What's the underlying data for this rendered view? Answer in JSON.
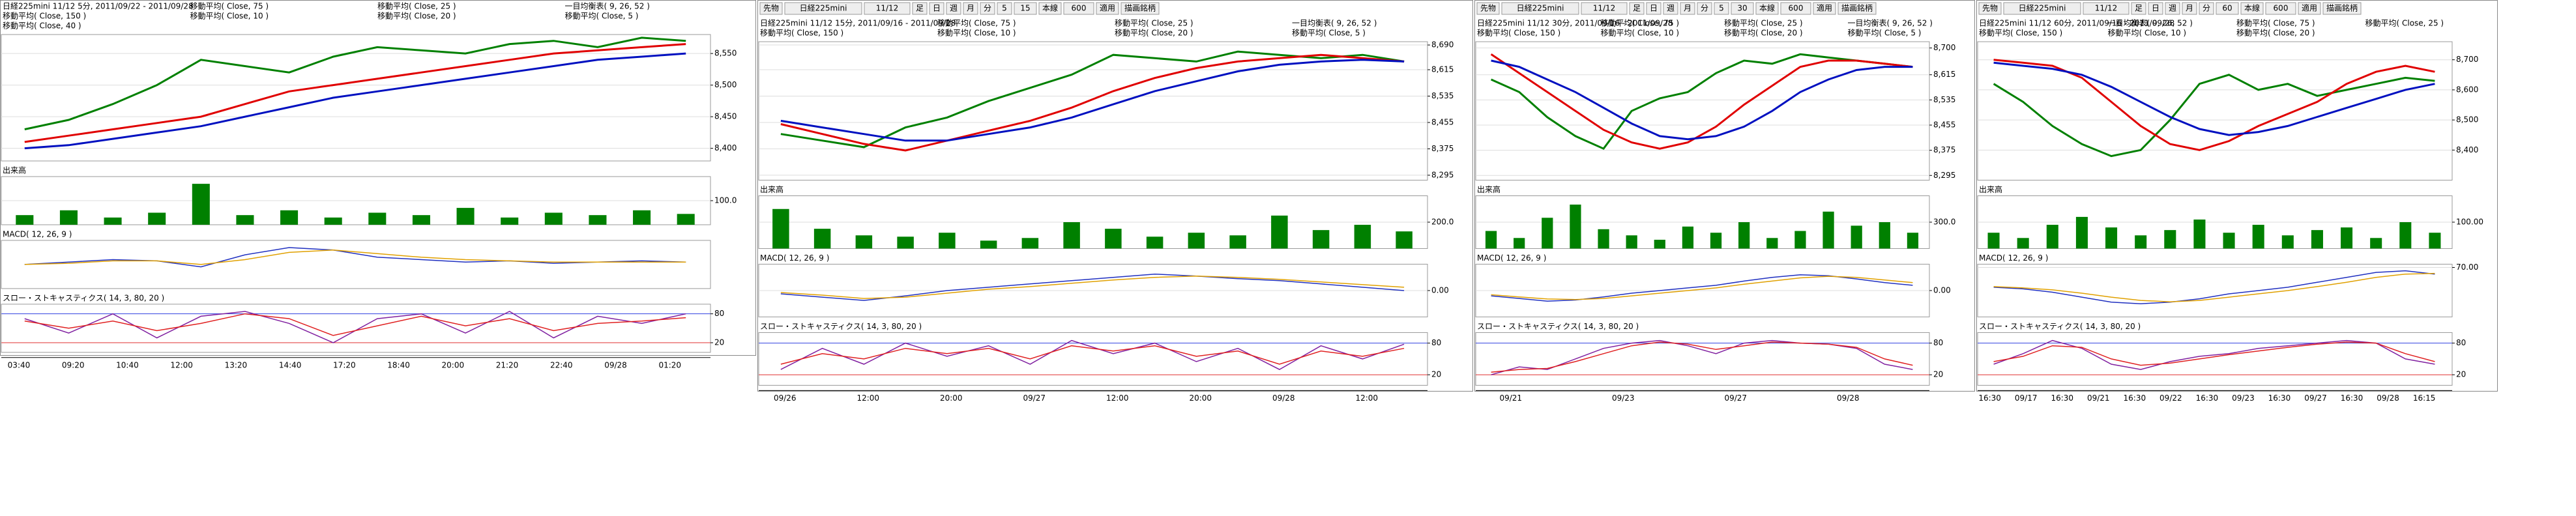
{
  "panels": [
    {
      "toolbar": null,
      "header": [
        "日経225mini 11/12 5分, 2011/09/22 - 2011/09/28",
        "移動平均( Close, 75 )",
        "移動平均( Close, 25 )",
        "一目均衡表( 9, 26, 52 )",
        "移動平均( Close, 150 )",
        "移動平均( Close, 10 )",
        "移動平均( Close, 20 )",
        "移動平均( Close, 5 )",
        "移動平均( Close, 40 )"
      ],
      "price": {
        "ylim": [
          8380,
          8580
        ],
        "yticks": [
          {
            "value": 8400,
            "label": "8,400"
          },
          {
            "value": 8450,
            "label": "8,450"
          },
          {
            "value": 8500,
            "label": "8,500"
          },
          {
            "value": 8550,
            "label": "8,550"
          }
        ],
        "series": [
          {
            "color": "#008000",
            "values": [
              8430,
              8445,
              8470,
              8500,
              8540,
              8530,
              8520,
              8545,
              8560,
              8555,
              8550,
              8565,
              8570,
              8560,
              8575,
              8570
            ]
          },
          {
            "color": "#e00000",
            "values": [
              8410,
              8420,
              8430,
              8440,
              8450,
              8470,
              8490,
              8500,
              8510,
              8520,
              8530,
              8540,
              8550,
              8555,
              8560,
              8565
            ]
          },
          {
            "color": "#0010c0",
            "values": [
              8400,
              8405,
              8415,
              8425,
              8435,
              8450,
              8465,
              8480,
              8490,
              8500,
              8510,
              8520,
              8530,
              8540,
              8545,
              8550
            ]
          }
        ]
      },
      "volume": {
        "label": "出来高",
        "ylim": [
          0,
          200
        ],
        "yticks": [
          {
            "value": 100,
            "label": "100.0"
          }
        ],
        "color": "#008000",
        "values": [
          40,
          60,
          30,
          50,
          170,
          40,
          60,
          30,
          50,
          40,
          70,
          30,
          50,
          40,
          60,
          45
        ]
      },
      "macd": {
        "label": "MACD( 12, 26, 9 )",
        "ylim": [
          -20,
          20
        ],
        "yticks": [],
        "series": [
          {
            "color": "#2030c0",
            "values": [
              0,
              2,
              4,
              3,
              -2,
              8,
              14,
              12,
              6,
              4,
              2,
              3,
              1,
              2,
              3,
              2
            ]
          },
          {
            "color": "#e0a000",
            "values": [
              0,
              1,
              3,
              3,
              0,
              4,
              10,
              12,
              9,
              6,
              4,
              3,
              2,
              2,
              2,
              2
            ]
          }
        ]
      },
      "stoch": {
        "label": "スロー・ストキャスティクス( 14, 3, 80, 20 )",
        "ylim": [
          0,
          100
        ],
        "yticks": [
          20,
          80
        ],
        "series": [
          {
            "color": "#8020a0",
            "values": [
              70,
              40,
              80,
              30,
              75,
              85,
              60,
              20,
              70,
              80,
              40,
              85,
              30,
              75,
              60,
              80
            ]
          },
          {
            "color": "#e02020",
            "values": [
              65,
              50,
              65,
              45,
              60,
              80,
              70,
              35,
              55,
              75,
              55,
              70,
              45,
              60,
              65,
              72
            ]
          }
        ]
      },
      "xticks": [
        "03:40",
        "09:20",
        "10:40",
        "12:00",
        "13:20",
        "14:40",
        "17:20",
        "18:40",
        "20:00",
        "21:20",
        "22:40",
        "09/28",
        "01:20"
      ]
    },
    {
      "toolbar": [
        "先物",
        "日経225mini",
        "11/12",
        "足",
        "日",
        "週",
        "月",
        "分",
        "5",
        "15",
        "本線",
        "600",
        "適用",
        "描画銘柄"
      ],
      "header": [
        "日経225mini 11/12 15分, 2011/09/16 - 2011/09/28",
        "移動平均( Close, 75 )",
        "移動平均( Close, 25 )",
        "一目均衡表( 9, 26, 52 )",
        "移動平均( Close, 150 )",
        "移動平均( Close, 10 )",
        "移動平均( Close, 20 )",
        "移動平均( Close, 5 )"
      ],
      "price": {
        "ylim": [
          8280,
          8700
        ],
        "yticks": [
          {
            "value": 8295,
            "label": "8,295"
          },
          {
            "value": 8375,
            "label": "8,375"
          },
          {
            "value": 8455,
            "label": "8,455"
          },
          {
            "value": 8535,
            "label": "8,535"
          },
          {
            "value": 8615,
            "label": "8,615"
          },
          {
            "value": 8690,
            "label": "8,690"
          }
        ],
        "series": [
          {
            "color": "#008000",
            "values": [
              8420,
              8400,
              8380,
              8440,
              8470,
              8520,
              8560,
              8600,
              8660,
              8650,
              8640,
              8670,
              8660,
              8650,
              8660,
              8640
            ]
          },
          {
            "color": "#e00000",
            "values": [
              8450,
              8420,
              8390,
              8370,
              8400,
              8430,
              8460,
              8500,
              8550,
              8590,
              8620,
              8640,
              8650,
              8660,
              8650,
              8640
            ]
          },
          {
            "color": "#0010c0",
            "values": [
              8460,
              8440,
              8420,
              8400,
              8400,
              8420,
              8440,
              8470,
              8510,
              8550,
              8580,
              8610,
              8630,
              8640,
              8645,
              8640
            ]
          }
        ]
      },
      "volume": {
        "label": "出来高",
        "ylim": [
          0,
          400
        ],
        "yticks": [
          {
            "value": 200,
            "label": "200.0"
          }
        ],
        "color": "#008000",
        "values": [
          300,
          150,
          100,
          90,
          120,
          60,
          80,
          200,
          150,
          90,
          120,
          100,
          250,
          140,
          180,
          130
        ]
      },
      "macd": {
        "label": "MACD( 12, 26, 9 )",
        "ylim": [
          -40,
          40
        ],
        "yticks": [
          {
            "value": 0,
            "label": "0.00"
          }
        ],
        "series": [
          {
            "color": "#2030c0",
            "values": [
              -5,
              -10,
              -15,
              -8,
              0,
              5,
              10,
              15,
              20,
              25,
              22,
              18,
              15,
              10,
              5,
              0
            ]
          },
          {
            "color": "#e0a000",
            "values": [
              -3,
              -7,
              -12,
              -10,
              -4,
              2,
              6,
              11,
              16,
              20,
              22,
              20,
              17,
              13,
              9,
              5
            ]
          }
        ]
      },
      "stoch": {
        "label": "スロー・ストキャスティクス( 14, 3, 80, 20 )",
        "ylim": [
          0,
          100
        ],
        "yticks": [
          20,
          80
        ],
        "series": [
          {
            "color": "#8020a0",
            "values": [
              30,
              70,
              40,
              80,
              55,
              75,
              40,
              85,
              60,
              80,
              45,
              70,
              30,
              75,
              50,
              78
            ]
          },
          {
            "color": "#e02020",
            "values": [
              40,
              60,
              50,
              70,
              60,
              70,
              50,
              75,
              65,
              75,
              55,
              65,
              40,
              65,
              55,
              70
            ]
          }
        ]
      },
      "xticks": [
        "09/26",
        "12:00",
        "20:00",
        "09/27",
        "12:00",
        "20:00",
        "09/28",
        "12:00"
      ]
    },
    {
      "toolbar": [
        "先物",
        "日経225mini",
        "11/12",
        "足",
        "日",
        "週",
        "月",
        "分",
        "5",
        "30",
        "本線",
        "600",
        "適用",
        "描画銘柄"
      ],
      "header": [
        "日経225mini 11/12 30分, 2011/09/16 - 2011/09/28",
        "移動平均( Close, 75 )",
        "移動平均( Close, 25 )",
        "一目均衡表( 9, 26, 52 )",
        "移動平均( Close, 150 )",
        "移動平均( Close, 10 )",
        "移動平均( Close, 20 )",
        "移動平均( Close, 5 )"
      ],
      "price": {
        "ylim": [
          8280,
          8720
        ],
        "yticks": [
          {
            "value": 8295,
            "label": "8,295"
          },
          {
            "value": 8375,
            "label": "8,375"
          },
          {
            "value": 8455,
            "label": "8,455"
          },
          {
            "value": 8535,
            "label": "8,535"
          },
          {
            "value": 8615,
            "label": "8,615"
          },
          {
            "value": 8700,
            "label": "8,700"
          }
        ],
        "series": [
          {
            "color": "#008000",
            "values": [
              8600,
              8560,
              8480,
              8420,
              8380,
              8500,
              8540,
              8560,
              8620,
              8660,
              8650,
              8680,
              8670,
              8660,
              8650,
              8640
            ]
          },
          {
            "color": "#e00000",
            "values": [
              8680,
              8620,
              8560,
              8500,
              8440,
              8400,
              8380,
              8400,
              8450,
              8520,
              8580,
              8640,
              8660,
              8660,
              8650,
              8640
            ]
          },
          {
            "color": "#0010c0",
            "values": [
              8660,
              8640,
              8600,
              8560,
              8510,
              8460,
              8420,
              8410,
              8420,
              8450,
              8500,
              8560,
              8600,
              8630,
              8640,
              8640
            ]
          }
        ]
      },
      "volume": {
        "label": "出来高",
        "ylim": [
          0,
          600
        ],
        "yticks": [
          {
            "value": 300,
            "label": "300.0"
          }
        ],
        "color": "#008000",
        "values": [
          200,
          120,
          350,
          500,
          220,
          150,
          100,
          250,
          180,
          300,
          120,
          200,
          420,
          260,
          300,
          180
        ]
      },
      "macd": {
        "label": "MACD( 12, 26, 9 )",
        "ylim": [
          -50,
          50
        ],
        "yticks": [
          {
            "value": 0,
            "label": "0.00"
          }
        ],
        "series": [
          {
            "color": "#2030c0",
            "values": [
              -10,
              -15,
              -20,
              -18,
              -12,
              -5,
              0,
              5,
              10,
              18,
              25,
              30,
              28,
              22,
              15,
              10
            ]
          },
          {
            "color": "#e0a000",
            "values": [
              -8,
              -12,
              -16,
              -17,
              -15,
              -10,
              -5,
              0,
              5,
              12,
              18,
              24,
              27,
              25,
              20,
              15
            ]
          }
        ]
      },
      "stoch": {
        "label": "スロー・ストキャスティクス( 14, 3, 80, 20 )",
        "ylim": [
          0,
          100
        ],
        "yticks": [
          20,
          80
        ],
        "series": [
          {
            "color": "#8020a0",
            "values": [
              20,
              35,
              30,
              50,
              70,
              80,
              85,
              75,
              60,
              80,
              85,
              80,
              78,
              70,
              40,
              30
            ]
          },
          {
            "color": "#e02020",
            "values": [
              25,
              30,
              32,
              45,
              60,
              75,
              82,
              78,
              68,
              75,
              82,
              80,
              78,
              72,
              50,
              38
            ]
          }
        ]
      },
      "xticks": [
        "09/21",
        "09/23",
        "09/27",
        "09/28"
      ]
    },
    {
      "toolbar": [
        "先物",
        "日経225mini",
        "11/12",
        "足",
        "日",
        "週",
        "月",
        "分",
        "60",
        "本線",
        "600",
        "適用",
        "描画銘柄"
      ],
      "header": [
        "日経225mini 11/12 60分, 2011/09/16 - 2011/09/28",
        "一目均衡表( 9, 26, 52 )",
        "移動平均( Close, 75 )",
        "移動平均( Close, 25 )",
        "移動平均( Close, 150 )",
        "移動平均( Close, 10 )",
        "移動平均( Close, 20 )"
      ],
      "price": {
        "ylim": [
          8300,
          8760
        ],
        "yticks": [
          {
            "value": 8400,
            "label": "8,400"
          },
          {
            "value": 8500,
            "label": "8,500"
          },
          {
            "value": 8600,
            "label": "8,600"
          },
          {
            "value": 8700,
            "label": "8,700"
          }
        ],
        "series": [
          {
            "color": "#008000",
            "values": [
              8620,
              8560,
              8480,
              8420,
              8380,
              8400,
              8500,
              8620,
              8650,
              8600,
              8620,
              8580,
              8600,
              8620,
              8640,
              8630
            ]
          },
          {
            "color": "#e00000",
            "values": [
              8700,
              8690,
              8680,
              8640,
              8560,
              8480,
              8420,
              8400,
              8430,
              8480,
              8520,
              8560,
              8620,
              8660,
              8680,
              8660
            ]
          },
          {
            "color": "#0010c0",
            "values": [
              8690,
              8680,
              8670,
              8650,
              8610,
              8560,
              8510,
              8470,
              8450,
              8460,
              8480,
              8510,
              8540,
              8570,
              8600,
              8620
            ]
          }
        ]
      },
      "volume": {
        "label": "出来高",
        "ylim": [
          0,
          200
        ],
        "yticks": [
          {
            "value": 100,
            "label": "100.00"
          }
        ],
        "color": "#008000",
        "values": [
          60,
          40,
          90,
          120,
          80,
          50,
          70,
          110,
          60,
          90,
          50,
          70,
          80,
          40,
          100,
          60
        ]
      },
      "macd": {
        "label": "MACD( 12, 26, 9 )",
        "ylim": [
          -80,
          80
        ],
        "yticks": [
          {
            "value": 70,
            "label": "70.00"
          }
        ],
        "series": [
          {
            "color": "#2030c0",
            "values": [
              10,
              5,
              -5,
              -20,
              -35,
              -40,
              -35,
              -25,
              -10,
              0,
              10,
              25,
              40,
              55,
              60,
              50
            ]
          },
          {
            "color": "#e0a000",
            "values": [
              12,
              8,
              2,
              -8,
              -20,
              -30,
              -34,
              -30,
              -20,
              -10,
              0,
              12,
              25,
              40,
              50,
              52
            ]
          }
        ]
      },
      "stoch": {
        "label": "スロー・ストキャスティクス( 14, 3, 80, 20 )",
        "ylim": [
          0,
          100
        ],
        "yticks": [
          20,
          80
        ],
        "series": [
          {
            "color": "#8020a0",
            "values": [
              40,
              60,
              85,
              70,
              40,
              30,
              45,
              55,
              60,
              70,
              75,
              80,
              85,
              80,
              50,
              40
            ]
          },
          {
            "color": "#e02020",
            "values": [
              45,
              55,
              75,
              72,
              50,
              38,
              42,
              50,
              58,
              65,
              72,
              78,
              82,
              80,
              60,
              45
            ]
          }
        ]
      },
      "xticks": [
        "16:30",
        "09/17",
        "16:30",
        "09/21",
        "16:30",
        "09/22",
        "16:30",
        "09/23",
        "16:30",
        "09/27",
        "16:30",
        "09/28",
        "16:15"
      ]
    }
  ]
}
